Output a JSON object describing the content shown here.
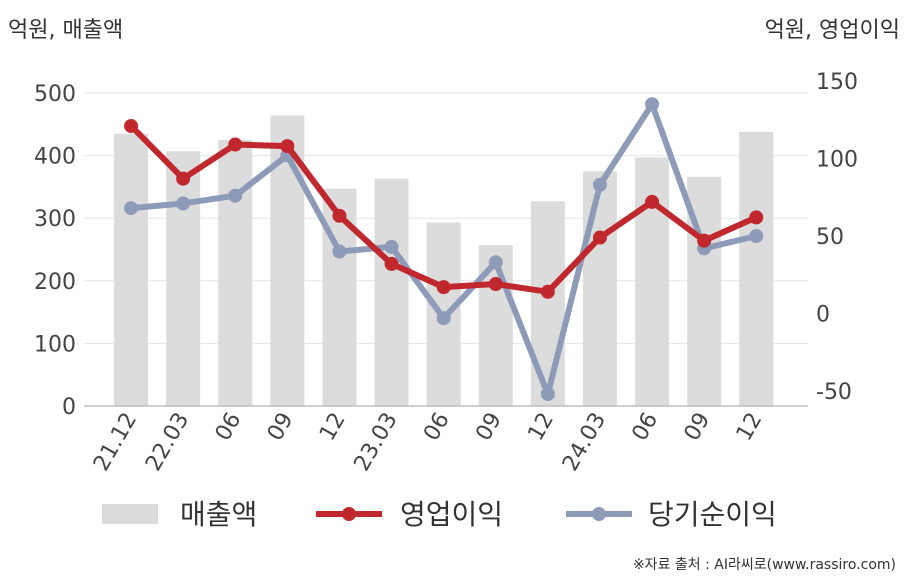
{
  "chart_data": {
    "type": "bar+line",
    "left_axis_label": "억원, 매출액",
    "right_axis_label": "억원, 영업이익",
    "categories": [
      "21.12",
      "22.03",
      "06",
      "09",
      "12",
      "23.03",
      "06",
      "09",
      "12",
      "24.03",
      "06",
      "09",
      "12"
    ],
    "y_left": {
      "range": [
        0,
        500
      ],
      "ticks": [
        0,
        100,
        200,
        300,
        400,
        500
      ]
    },
    "y_right": {
      "range": [
        -60,
        150
      ],
      "ticks": [
        -50,
        0,
        50,
        100,
        150
      ]
    },
    "grid": true,
    "legend_position": "bottom",
    "series": [
      {
        "name": "매출액",
        "type": "bar",
        "axis": "left",
        "color": "#dcdcdc",
        "values": [
          435,
          407,
          425,
          464,
          347,
          363,
          293,
          257,
          327,
          375,
          397,
          366,
          438
        ]
      },
      {
        "name": "영업이익",
        "type": "line",
        "axis": "right",
        "color": "#c0282d",
        "values": [
          121,
          87,
          109,
          108,
          63,
          32,
          17,
          19,
          14,
          49,
          72,
          47,
          62
        ]
      },
      {
        "name": "당기순이익",
        "type": "line",
        "axis": "right",
        "color": "#8e9bb8",
        "values": [
          68,
          71,
          76,
          102,
          40,
          43,
          -3,
          33,
          -52,
          83,
          135,
          42,
          50
        ]
      }
    ]
  },
  "source": "※자료 출처 : AI라씨로(www.rassiro.com)"
}
